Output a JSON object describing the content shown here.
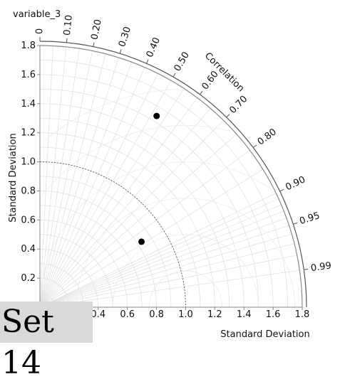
{
  "panel_label": "Set 14",
  "chart_data": {
    "type": "taylor-diagram",
    "title": "variable_3",
    "xlabel": "Standard Deviation",
    "ylabel": "Standard Deviation",
    "correlation_label": "Correlation",
    "std_range": [
      0,
      1.8
    ],
    "std_ticks": [
      0.2,
      0.4,
      0.6,
      0.8,
      1.0,
      1.2,
      1.4,
      1.6,
      1.8
    ],
    "std_tick_labels": [
      "0.2",
      "0.4",
      "0.6",
      "0.8",
      "1.0",
      "1.2",
      "1.4",
      "1.6",
      "1.8"
    ],
    "correlation_ticks": [
      0,
      0.1,
      0.2,
      0.3,
      0.4,
      0.5,
      0.6,
      0.7,
      0.8,
      0.9,
      0.95,
      0.99
    ],
    "correlation_tick_labels": [
      "0",
      "0.10",
      "0.20",
      "0.30",
      "0.40",
      "0.50",
      "0.60",
      "0.70",
      "0.80",
      "0.90",
      "0.95",
      "0.99"
    ],
    "reference_std": 1.0,
    "grid": true,
    "points": [
      {
        "std": 1.54,
        "correlation": 0.52
      },
      {
        "std": 0.83,
        "correlation": 0.84
      }
    ]
  }
}
